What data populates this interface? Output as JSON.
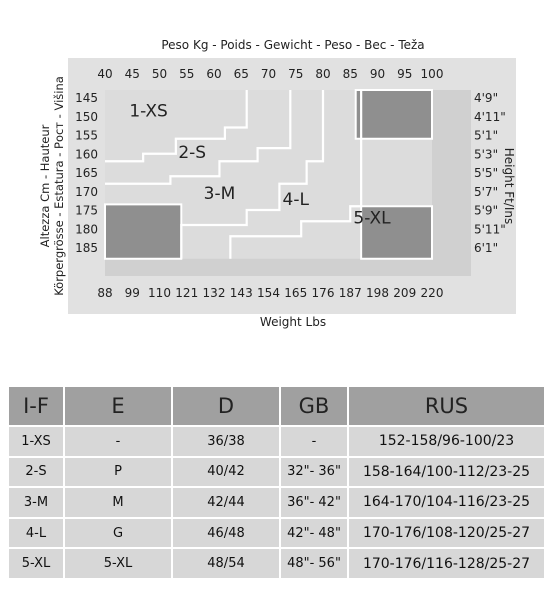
{
  "chart_data": {
    "type": "heatmap",
    "title": "Peso Kg - Poids - Gewicht - Peso - Bec - Teža",
    "xlabel": "Weight Lbs",
    "ylabel": "Altezza Cm - Hauteur Körpergrösse - Estatura - Рост - Višina",
    "y2label": "Height Ft/Ins",
    "x_kg_ticks": [
      "40",
      "45",
      "50",
      "55",
      "60",
      "65",
      "70",
      "75",
      "80",
      "85",
      "90",
      "95",
      "100"
    ],
    "x_lbs_ticks": [
      "88",
      "99",
      "110",
      "121",
      "132",
      "143",
      "154",
      "165",
      "176",
      "187",
      "198",
      "209",
      "220"
    ],
    "y_cm_ticks": [
      "145",
      "150",
      "155",
      "160",
      "165",
      "170",
      "175",
      "180",
      "185"
    ],
    "y_ftin_ticks": [
      "4'9\"",
      "4'11\"",
      "5'1\"",
      "5'3\"",
      "5'5\"",
      "5'7\"",
      "5'9\"",
      "5'11\"",
      "6'1\""
    ],
    "regions": [
      {
        "name": "1-XS"
      },
      {
        "name": "2-S"
      },
      {
        "name": "3-M"
      },
      {
        "name": "4-L"
      },
      {
        "name": "5-XL"
      }
    ],
    "colors": {
      "frame": "#e1e1e1",
      "inner": "#d0d0d0",
      "size_region": "#dcdcdc",
      "dark_zone": "#8f8f8f",
      "divider": "#ffffff"
    }
  },
  "table": {
    "headers": [
      "I-F",
      "E",
      "D",
      "GB",
      "RUS"
    ],
    "rows": [
      [
        "1-XS",
        "-",
        "36/38",
        "-",
        "152-158/96-100/23"
      ],
      [
        "2-S",
        "P",
        "40/42",
        "32\"- 36\"",
        "158-164/100-112/23-25"
      ],
      [
        "3-M",
        "M",
        "42/44",
        "36\"- 42\"",
        "164-170/104-116/23-25"
      ],
      [
        "4-L",
        "G",
        "46/48",
        "42\"- 48\"",
        "170-176/108-120/25-27"
      ],
      [
        "5-XL",
        "5-XL",
        "48/54",
        "48\"- 56\"",
        "170-176/116-128/25-27"
      ]
    ]
  }
}
